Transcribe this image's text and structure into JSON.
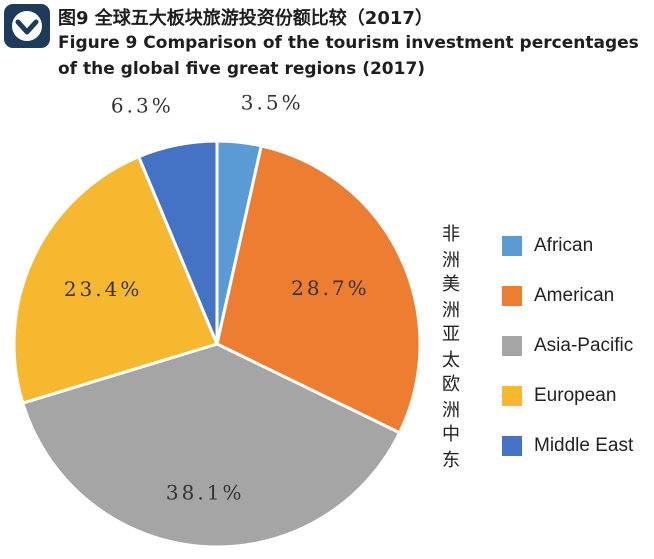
{
  "header": {
    "title_cn": "图9 全球五大板块旅游投资份额比较（2017）",
    "title_en_line1": "Figure 9 Comparison of the tourism investment percentages",
    "title_en_line2": "of the global five great regions (2017)"
  },
  "chart_data": {
    "type": "pie",
    "title": "Figure 9 Comparison of the tourism investment percentages of the global five great regions (2017)",
    "start_angle_deg": 0,
    "direction": "clockwise",
    "legend_position": "right",
    "slices": [
      {
        "label_cn": "非 洲",
        "label_en": "African",
        "value": 3.5,
        "label": "3.5%",
        "color": "#5b9bd5"
      },
      {
        "label_cn": "美 洲",
        "label_en": "American",
        "value": 28.7,
        "label": "28.7%",
        "color": "#ed7d31"
      },
      {
        "label_cn": "亚 太",
        "label_en": "Asia-Pacific",
        "value": 38.1,
        "label": "38.1%",
        "color": "#a5a5a5"
      },
      {
        "label_cn": "欧 洲",
        "label_en": "European",
        "value": 23.4,
        "label": "23.4%",
        "color": "#f6b82f"
      },
      {
        "label_cn": "中 东",
        "label_en": "Middle East",
        "value": 6.3,
        "label": "6.3%",
        "color": "#4472c4"
      }
    ]
  },
  "colors": {
    "logo": "#1f3b5c",
    "text": "#1e1e1e"
  }
}
